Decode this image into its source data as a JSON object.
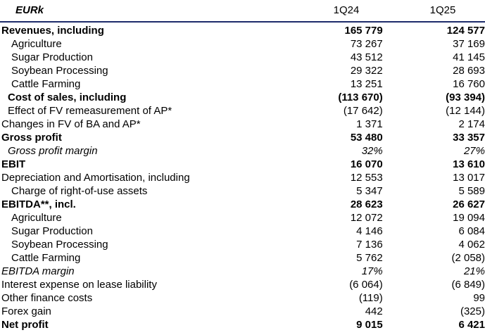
{
  "header": {
    "label": "EURk",
    "col1": "1Q24",
    "col2": "1Q25"
  },
  "rows": [
    {
      "name": "Revenues, including",
      "v1": "165 779",
      "v2": "124 577",
      "style": "bold",
      "indent": 0
    },
    {
      "name": "Agriculture",
      "v1": "73 267",
      "v2": "37 169",
      "style": "normal",
      "indent": 2
    },
    {
      "name": "Sugar Production",
      "v1": "43 512",
      "v2": "41 145",
      "style": "normal",
      "indent": 2
    },
    {
      "name": "Soybean Processing",
      "v1": "29 322",
      "v2": "28 693",
      "style": "normal",
      "indent": 2
    },
    {
      "name": "Cattle Farming",
      "v1": "13 251",
      "v2": "16 760",
      "style": "normal",
      "indent": 2
    },
    {
      "name": "Cost of sales, including",
      "v1": "(113 670)",
      "v2": "(93 394)",
      "style": "bold",
      "indent": 1
    },
    {
      "name": "Effect of FV remeasurement of AP*",
      "v1": "(17 642)",
      "v2": "(12 144)",
      "style": "normal",
      "indent": 1
    },
    {
      "name": "Changes in FV of BA and AP*",
      "v1": "1 371",
      "v2": "2 174",
      "style": "normal",
      "indent": 0
    },
    {
      "name": "Gross profit",
      "v1": "53 480",
      "v2": "33 357",
      "style": "bold",
      "indent": 0
    },
    {
      "name": "Gross profit margin",
      "v1": "32%",
      "v2": "27%",
      "style": "italic",
      "indent": 1
    },
    {
      "name": "EBIT",
      "v1": "16 070",
      "v2": "13 610",
      "style": "bold",
      "indent": 0
    },
    {
      "name": "Depreciation and Amortisation, including",
      "v1": "12 553",
      "v2": "13 017",
      "style": "normal",
      "indent": 0
    },
    {
      "name": "Charge of right-of-use assets",
      "v1": "5 347",
      "v2": "5 589",
      "style": "normal",
      "indent": 2
    },
    {
      "name": "EBITDA**, incl.",
      "v1": "28 623",
      "v2": "26 627",
      "style": "bold",
      "indent": 0
    },
    {
      "name": "Agriculture",
      "v1": "12 072",
      "v2": "19 094",
      "style": "normal",
      "indent": 2
    },
    {
      "name": "Sugar Production",
      "v1": "4 146",
      "v2": "6 084",
      "style": "normal",
      "indent": 2
    },
    {
      "name": "Soybean Processing",
      "v1": "7 136",
      "v2": "4 062",
      "style": "normal",
      "indent": 2
    },
    {
      "name": "Cattle Farming",
      "v1": "5 762",
      "v2": "(2 058)",
      "style": "normal",
      "indent": 2
    },
    {
      "name": "EBITDA margin",
      "v1": "17%",
      "v2": "21%",
      "style": "italic",
      "indent": 0
    },
    {
      "name": "Interest expense on lease liability",
      "v1": "(6 064)",
      "v2": "(6 849)",
      "style": "normal",
      "indent": 0
    },
    {
      "name": "Other finance costs",
      "v1": "(119)",
      "v2": "99",
      "style": "normal",
      "indent": 0
    },
    {
      "name": "Forex gain",
      "v1": "442",
      "v2": "(325)",
      "style": "normal",
      "indent": 0
    },
    {
      "name": "Net profit",
      "v1": "9 015",
      "v2": "6 421",
      "style": "bold",
      "indent": 0
    }
  ]
}
